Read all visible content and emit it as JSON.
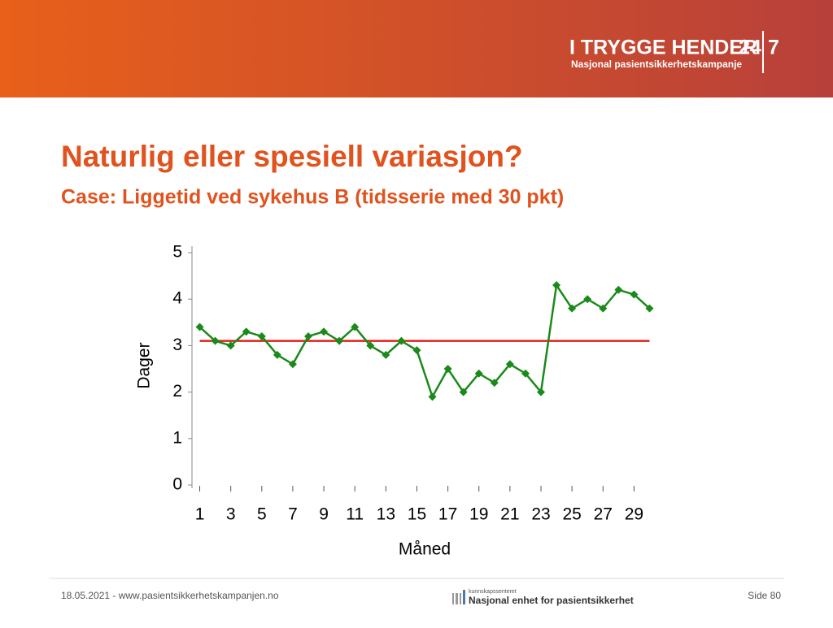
{
  "header": {
    "logo": "I TRYGGE HENDER",
    "logo_number_1": "24",
    "logo_number_2": "7",
    "logo_subtitle": "Nasjonal pasientsikkerhetskampanje"
  },
  "title": "Naturlig eller spesiell variasjon?",
  "subtitle": "Case: Liggetid ved sykehus B (tidsserie med 30 pkt)",
  "footer": {
    "date_url": "18.05.2021 - www.pasientsikkerhetskampanjen.no",
    "org_small": "kunnskapssenteret",
    "org": "Nasjonal enhet for pasientsikkerhet",
    "page": "Side 80"
  },
  "chart_data": {
    "type": "line",
    "x": [
      1,
      2,
      3,
      4,
      5,
      6,
      7,
      8,
      9,
      10,
      11,
      12,
      13,
      14,
      15,
      16,
      17,
      18,
      19,
      20,
      21,
      22,
      23,
      24,
      25,
      26,
      27,
      28,
      29,
      30
    ],
    "series": [
      {
        "color": "#1a8a1a",
        "values": [
          3.4,
          3.1,
          3.0,
          3.3,
          3.2,
          2.8,
          2.6,
          3.2,
          3.3,
          3.1,
          3.4,
          3.0,
          2.8,
          3.1,
          2.9,
          1.9,
          2.5,
          2.0,
          2.4,
          2.2,
          2.6,
          2.4,
          2.0,
          4.3,
          3.8,
          4.0,
          3.8,
          4.2,
          4.1,
          3.8
        ]
      }
    ],
    "reference_line": {
      "value": 3.1,
      "color": "#e0201c"
    },
    "xlabel": "Måned",
    "ylabel": "Dager",
    "xlim": [
      0.5,
      30.5
    ],
    "xticks": [
      1,
      3,
      5,
      7,
      9,
      11,
      13,
      15,
      17,
      19,
      21,
      23,
      25,
      27,
      29
    ],
    "ylim": [
      0,
      5
    ],
    "yticks": [
      0,
      1,
      2,
      3,
      4,
      5
    ]
  }
}
